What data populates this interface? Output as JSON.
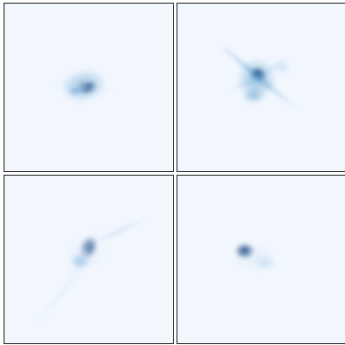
{
  "chart_data": [
    {
      "type": "heatmap",
      "background": "#f2f7fe",
      "colormap": [
        "#f2f7fe",
        "#cde0f2",
        "#8dbfe0",
        "#4a94c9",
        "#1a5fa6",
        "#08306b"
      ],
      "features": [
        {
          "kind": "blob",
          "cx": 0.47,
          "cy": 0.49,
          "rx": 0.14,
          "ry": 0.1,
          "rot": -10,
          "intensity": 0.55
        },
        {
          "kind": "blob",
          "cx": 0.49,
          "cy": 0.5,
          "rx": 0.06,
          "ry": 0.04,
          "rot": -10,
          "intensity": 1.0
        },
        {
          "kind": "blob",
          "cx": 0.42,
          "cy": 0.52,
          "rx": 0.05,
          "ry": 0.03,
          "rot": 0,
          "intensity": 0.55
        },
        {
          "kind": "streak",
          "cx": 0.47,
          "cy": 0.5,
          "length": 0.5,
          "width": 0.025,
          "rot": 8,
          "intensity": 0.18
        },
        {
          "kind": "streak",
          "cx": 0.47,
          "cy": 0.5,
          "length": 0.35,
          "width": 0.03,
          "rot": -70,
          "intensity": 0.12
        }
      ]
    },
    {
      "type": "heatmap",
      "background": "#f2f7fe",
      "colormap": [
        "#f2f7fe",
        "#cde0f2",
        "#8dbfe0",
        "#4a94c9",
        "#1a5fa6",
        "#08306b"
      ],
      "features": [
        {
          "kind": "blob",
          "cx": 0.47,
          "cy": 0.45,
          "rx": 0.12,
          "ry": 0.13,
          "rot": 0,
          "intensity": 0.6
        },
        {
          "kind": "blob",
          "cx": 0.48,
          "cy": 0.42,
          "rx": 0.05,
          "ry": 0.04,
          "rot": 20,
          "intensity": 1.0
        },
        {
          "kind": "blob",
          "cx": 0.62,
          "cy": 0.38,
          "rx": 0.06,
          "ry": 0.05,
          "rot": 0,
          "intensity": 0.35
        },
        {
          "kind": "blob",
          "cx": 0.45,
          "cy": 0.55,
          "rx": 0.07,
          "ry": 0.05,
          "rot": 0,
          "intensity": 0.5
        },
        {
          "kind": "streak",
          "cx": 0.47,
          "cy": 0.43,
          "length": 0.62,
          "width": 0.02,
          "rot": 40,
          "intensity": 0.55
        },
        {
          "kind": "streak",
          "cx": 0.48,
          "cy": 0.43,
          "length": 0.45,
          "width": 0.02,
          "rot": -30,
          "intensity": 0.4
        }
      ]
    },
    {
      "type": "heatmap",
      "background": "#f2f7fe",
      "colormap": [
        "#f2f7fe",
        "#cde0f2",
        "#8dbfe0",
        "#4a94c9",
        "#1a5fa6",
        "#08306b"
      ],
      "features": [
        {
          "kind": "blob",
          "cx": 0.5,
          "cy": 0.43,
          "rx": 0.05,
          "ry": 0.07,
          "rot": 20,
          "intensity": 1.0
        },
        {
          "kind": "blob",
          "cx": 0.45,
          "cy": 0.51,
          "rx": 0.06,
          "ry": 0.05,
          "rot": 0,
          "intensity": 0.6
        },
        {
          "kind": "blob",
          "cx": 0.48,
          "cy": 0.46,
          "rx": 0.13,
          "ry": 0.12,
          "rot": 0,
          "intensity": 0.25
        },
        {
          "kind": "streak",
          "cx": 0.34,
          "cy": 0.7,
          "length": 0.6,
          "width": 0.02,
          "rot": -50,
          "intensity": 0.18
        },
        {
          "kind": "streak",
          "cx": 0.68,
          "cy": 0.33,
          "length": 0.4,
          "width": 0.02,
          "rot": -25,
          "intensity": 0.35
        },
        {
          "kind": "streak",
          "cx": 0.46,
          "cy": 0.48,
          "length": 0.4,
          "width": 0.035,
          "rot": -60,
          "intensity": 0.2
        }
      ]
    },
    {
      "type": "heatmap",
      "background": "#f2f7fe",
      "colormap": [
        "#f2f7fe",
        "#cde0f2",
        "#8dbfe0",
        "#4a94c9",
        "#1a5fa6",
        "#08306b"
      ],
      "features": [
        {
          "kind": "blob",
          "cx": 0.4,
          "cy": 0.45,
          "rx": 0.06,
          "ry": 0.05,
          "rot": 0,
          "intensity": 1.0
        },
        {
          "kind": "blob",
          "cx": 0.52,
          "cy": 0.52,
          "rx": 0.07,
          "ry": 0.05,
          "rot": 0,
          "intensity": 0.4
        },
        {
          "kind": "blob",
          "cx": 0.45,
          "cy": 0.49,
          "rx": 0.13,
          "ry": 0.09,
          "rot": 0,
          "intensity": 0.15
        }
      ]
    }
  ]
}
